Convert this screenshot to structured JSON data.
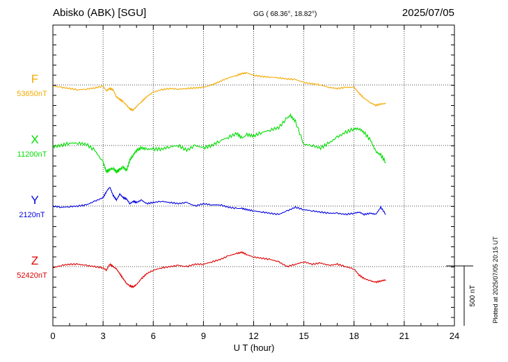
{
  "header": {
    "station": "Abisko (ABK)  [SGU]",
    "coords": "GG ( 68.36°,  18.82°)",
    "date": "2025/07/05"
  },
  "footer": {
    "plotted": "Plotted at 2025/07/05 20:15 UT"
  },
  "colors": {
    "F": "#f2a900",
    "X": "#00dd00",
    "Y": "#0000dd",
    "Z": "#dd0000"
  },
  "chart_data": {
    "type": "line",
    "xlabel": "U T (hour)",
    "xlim": [
      0,
      24
    ],
    "x_ticks": [
      "0",
      "3",
      "6",
      "9",
      "12",
      "15",
      "18",
      "21",
      "24"
    ],
    "scale_bar": "500 nT",
    "series": [
      {
        "name": "F",
        "baseline": "53650nT",
        "x": [
          0,
          0.5,
          1,
          1.5,
          2,
          2.5,
          3,
          3.2,
          3.4,
          3.6,
          3.8,
          4,
          4.2,
          4.4,
          4.6,
          4.8,
          5,
          5.3,
          5.6,
          6,
          6.5,
          7,
          7.5,
          8,
          8.5,
          9,
          9.5,
          10,
          10.5,
          11,
          11.3,
          11.6,
          12,
          12.5,
          13,
          13.5,
          14,
          14.5,
          15,
          15.5,
          16,
          16.5,
          17,
          17.5,
          18,
          18.3,
          18.6,
          19,
          19.3,
          19.6,
          19.9
        ],
        "y": [
          -10,
          -20,
          -30,
          -40,
          -35,
          -25,
          -10,
          -50,
          -30,
          -40,
          -100,
          -120,
          -140,
          -170,
          -200,
          -210,
          -180,
          -140,
          -100,
          -60,
          -40,
          -30,
          -35,
          -30,
          -25,
          -20,
          0,
          30,
          60,
          80,
          95,
          100,
          80,
          70,
          65,
          60,
          50,
          45,
          20,
          10,
          0,
          -20,
          -30,
          -20,
          -20,
          -70,
          -110,
          -150,
          -170,
          -160,
          -155
        ]
      },
      {
        "name": "X",
        "baseline": "11200nT",
        "x": [
          0,
          0.5,
          1,
          1.5,
          2,
          2.5,
          3,
          3.2,
          3.4,
          3.6,
          3.8,
          4,
          4.2,
          4.4,
          4.6,
          4.8,
          5,
          5.3,
          5.6,
          6,
          6.5,
          7,
          7.5,
          8,
          8.5,
          9,
          9.5,
          10,
          10.5,
          11,
          11.3,
          11.6,
          12,
          12.5,
          13,
          13.5,
          14,
          14.2,
          14.5,
          15,
          15.5,
          16,
          16.5,
          17,
          17.5,
          18,
          18.3,
          18.6,
          19,
          19.3,
          19.6,
          19.9
        ],
        "y": [
          -10,
          0,
          20,
          20,
          10,
          -40,
          -140,
          -220,
          -200,
          -190,
          -220,
          -200,
          -180,
          -210,
          -120,
          -80,
          -40,
          -20,
          -30,
          -30,
          -30,
          -10,
          0,
          -40,
          0,
          -20,
          0,
          40,
          70,
          100,
          60,
          90,
          80,
          110,
          130,
          150,
          230,
          250,
          200,
          10,
          0,
          -20,
          20,
          70,
          110,
          140,
          140,
          110,
          40,
          -50,
          -80,
          -140
        ]
      },
      {
        "name": "Y",
        "baseline": "2120nT",
        "x": [
          0,
          0.5,
          1,
          1.5,
          2,
          2.5,
          3,
          3.2,
          3.4,
          3.6,
          3.8,
          4,
          4.2,
          4.4,
          4.6,
          4.8,
          5,
          5.3,
          5.6,
          6,
          6.5,
          7,
          7.5,
          8,
          8.5,
          9,
          9.5,
          10,
          10.5,
          11,
          11.3,
          11.6,
          12,
          12.5,
          13,
          13.5,
          14,
          14.5,
          15,
          15.5,
          16,
          16.5,
          17,
          17.5,
          18,
          18.3,
          18.6,
          19,
          19.3,
          19.6,
          19.9
        ],
        "y": [
          0,
          -10,
          -5,
          0,
          10,
          40,
          70,
          120,
          160,
          90,
          50,
          100,
          70,
          60,
          20,
          40,
          30,
          50,
          20,
          30,
          40,
          30,
          20,
          30,
          0,
          20,
          10,
          10,
          -10,
          -20,
          -20,
          -30,
          -40,
          -50,
          -60,
          -70,
          -40,
          -10,
          -30,
          -40,
          -50,
          -60,
          -60,
          -70,
          -60,
          -50,
          -70,
          -60,
          -70,
          -10,
          -70
        ]
      },
      {
        "name": "Z",
        "baseline": "52420nT",
        "x": [
          0,
          0.5,
          1,
          1.5,
          2,
          2.5,
          3,
          3.2,
          3.4,
          3.6,
          3.8,
          4,
          4.2,
          4.4,
          4.6,
          4.8,
          5,
          5.3,
          5.6,
          6,
          6.5,
          7,
          7.5,
          8,
          8.5,
          9,
          9.5,
          10,
          10.5,
          11,
          11.3,
          11.6,
          12,
          12.5,
          13,
          13.5,
          14,
          14.5,
          15,
          15.5,
          16,
          16.5,
          17,
          17.5,
          18,
          18.3,
          18.6,
          19,
          19.3,
          19.6,
          19.9
        ],
        "y": [
          -10,
          10,
          20,
          20,
          10,
          0,
          -10,
          -30,
          20,
          0,
          -20,
          -60,
          -100,
          -140,
          -160,
          -170,
          -150,
          -100,
          -60,
          -30,
          -10,
          0,
          10,
          0,
          20,
          20,
          40,
          60,
          90,
          110,
          120,
          100,
          80,
          70,
          60,
          40,
          0,
          20,
          40,
          20,
          30,
          10,
          20,
          0,
          -20,
          -70,
          -100,
          -120,
          -130,
          -120,
          -110
        ]
      }
    ]
  }
}
